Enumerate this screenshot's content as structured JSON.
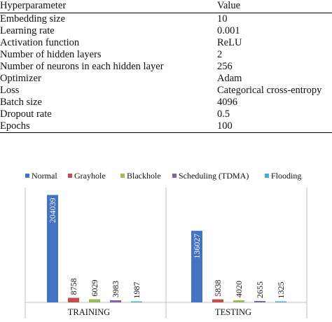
{
  "table": {
    "headers": [
      "Hyperparameter",
      "Value"
    ],
    "rows": [
      [
        "Embedding size",
        "10"
      ],
      [
        "Learning rate",
        "0.001"
      ],
      [
        "Activation function",
        "ReLU"
      ],
      [
        "Number of hidden layers",
        "2"
      ],
      [
        "Number of neurons in each hidden layer",
        "256"
      ],
      [
        "Optimizer",
        "Adam"
      ],
      [
        "Loss",
        "Categorical cross-entropy"
      ],
      [
        "Batch size",
        "4096"
      ],
      [
        "Dropout rate",
        "0.5"
      ],
      [
        "Epochs",
        "100"
      ]
    ]
  },
  "chart_data": {
    "type": "bar",
    "categories": [
      "TRAINING",
      "TESTING"
    ],
    "series": [
      {
        "name": "Normal",
        "color": "#4472c4",
        "values": [
          204039,
          136027
        ]
      },
      {
        "name": "Grayhole",
        "color": "#c0504d",
        "values": [
          8758,
          5838
        ]
      },
      {
        "name": "Blackhole",
        "color": "#9bbb59",
        "values": [
          6029,
          4020
        ]
      },
      {
        "name": "Scheduling (TDMA)",
        "color": "#8064a2",
        "values": [
          3983,
          2655
        ]
      },
      {
        "name": "Flooding",
        "color": "#4bacc6",
        "values": [
          1987,
          1325
        ]
      }
    ],
    "ylim": [
      0,
      210000
    ],
    "legend": "top",
    "grid": false,
    "data_labels": true
  }
}
